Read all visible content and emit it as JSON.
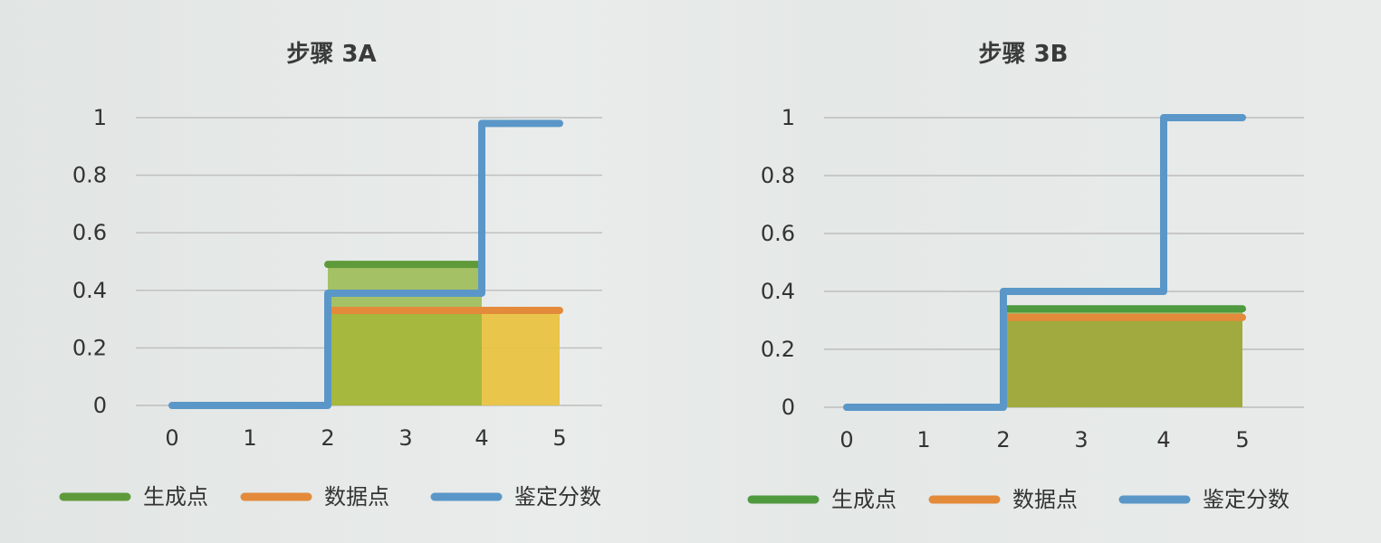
{
  "chart_data": [
    {
      "type": "line",
      "title": "步骤 3A",
      "x_ticks": [
        "0",
        "1",
        "2",
        "3",
        "4",
        "5"
      ],
      "y_ticks": [
        "0",
        "0.2",
        "0.4",
        "0.6",
        "0.8",
        "1"
      ],
      "ylim": [
        0,
        1
      ],
      "xlim": [
        0,
        5
      ],
      "grid": true,
      "legend_position": "bottom",
      "series": [
        {
          "name": "生成点",
          "color": "#5f9a3a",
          "fill": "#8fb33a",
          "step": "segments",
          "segments": [
            {
              "x0": 2,
              "x1": 4,
              "y": 0.49
            }
          ]
        },
        {
          "name": "数据点",
          "color": "#e38a3b",
          "fill": "#e9c23a",
          "step": "segments",
          "segments": [
            {
              "x0": 2,
              "x1": 5,
              "y": 0.33
            }
          ]
        },
        {
          "name": "鉴定分数",
          "color": "#5a97c8",
          "step": "path",
          "points": [
            [
              0,
              0
            ],
            [
              2,
              0
            ],
            [
              2,
              0.39
            ],
            [
              4,
              0.39
            ],
            [
              4,
              0.98
            ],
            [
              5,
              0.98
            ]
          ]
        }
      ]
    },
    {
      "type": "line",
      "title": "步骤 3B",
      "x_ticks": [
        "0",
        "1",
        "2",
        "3",
        "4",
        "5"
      ],
      "y_ticks": [
        "0",
        "0.2",
        "0.4",
        "0.6",
        "0.8",
        "1"
      ],
      "ylim": [
        0,
        1
      ],
      "xlim": [
        0,
        5
      ],
      "grid": true,
      "legend_position": "bottom",
      "series": [
        {
          "name": "生成点",
          "color": "#4f9a3f",
          "fill": "#8fa63a",
          "step": "segments",
          "segments": [
            {
              "x0": 2,
              "x1": 5,
              "y": 0.34
            }
          ]
        },
        {
          "name": "数据点",
          "color": "#e38a3b",
          "fill": "#d2b43a",
          "step": "segments",
          "segments": [
            {
              "x0": 2,
              "x1": 5,
              "y": 0.31
            }
          ]
        },
        {
          "name": "鉴定分数",
          "color": "#5a97c8",
          "step": "path",
          "points": [
            [
              0,
              0
            ],
            [
              2,
              0
            ],
            [
              2,
              0.4
            ],
            [
              4,
              0.4
            ],
            [
              4,
              1.0
            ],
            [
              5,
              1.0
            ]
          ]
        }
      ]
    }
  ]
}
